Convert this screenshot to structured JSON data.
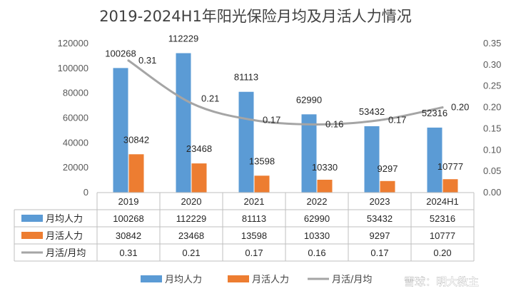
{
  "chart_data": {
    "type": "bar",
    "title": "2019-2024H1年阳光保险月均及月活人力情况",
    "categories": [
      "2019",
      "2020",
      "2021",
      "2022",
      "2023",
      "2024H1"
    ],
    "series": [
      {
        "name": "月均人力",
        "type": "bar",
        "axis": "left",
        "color": "#5b9bd5",
        "values": [
          100268,
          112229,
          81113,
          62990,
          53432,
          52316
        ],
        "value_labels": [
          "100268",
          "112229",
          "81113",
          "62990",
          "53432",
          "52316"
        ]
      },
      {
        "name": "月活人力",
        "type": "bar",
        "axis": "left",
        "color": "#ed7d31",
        "values": [
          30842,
          23468,
          13598,
          10330,
          9297,
          10777
        ],
        "value_labels": [
          "30842",
          "23468",
          "13598",
          "10330",
          "9297",
          "10777"
        ]
      },
      {
        "name": "月活/月均",
        "type": "line",
        "axis": "right",
        "color": "#a5a5a5",
        "values": [
          0.31,
          0.21,
          0.17,
          0.16,
          0.17,
          0.2
        ],
        "value_labels": [
          "0.31",
          "0.21",
          "0.17",
          "0.16",
          "0.17",
          "0.20"
        ]
      }
    ],
    "y_left": {
      "min": 0,
      "max": 120000,
      "ticks": [
        "0",
        "20000",
        "40000",
        "60000",
        "80000",
        "100000",
        "120000"
      ]
    },
    "y_right": {
      "min": 0,
      "max": 0.35,
      "ticks": [
        "0.00",
        "0.05",
        "0.10",
        "0.15",
        "0.20",
        "0.25",
        "0.30",
        "0.35"
      ]
    },
    "grid": false,
    "data_table": true,
    "legend_position": "bottom"
  },
  "watermark": "雪球：明大教主"
}
